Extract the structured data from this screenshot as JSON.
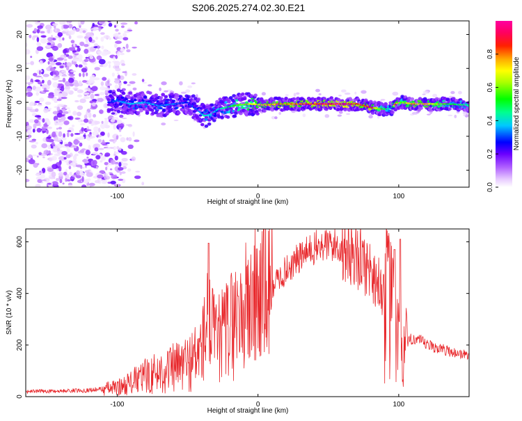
{
  "title": "S206.2025.274.02.30.E21",
  "chart_data": [
    {
      "type": "heatmap",
      "xlabel": "Height of straight line (km)",
      "ylabel": "Frequency (Hz)",
      "xlim": [
        -165,
        150
      ],
      "ylim": [
        -25,
        24
      ],
      "xticks": [
        -100,
        0,
        100
      ],
      "xtick_labels": [
        "-100",
        "0",
        "100"
      ],
      "yticks": [
        -20,
        -10,
        0,
        10,
        20
      ],
      "ytick_labels": [
        "-20",
        "-10",
        "0",
        "10",
        "20"
      ],
      "colorbar": {
        "label": "Normalized spectral amplitude",
        "range": [
          0.0,
          1.0
        ],
        "ticks": [
          0.0,
          0.2,
          0.4,
          0.6,
          0.8
        ],
        "tick_labels": [
          "0.0",
          "0.2",
          "0.4",
          "0.6",
          "0.8"
        ]
      },
      "ridge": {
        "description": "frequency ridge near 0 Hz",
        "x": [
          -105,
          -100,
          -90,
          -80,
          -70,
          -60,
          -50,
          -42,
          -38,
          -33,
          -28,
          -22,
          -15,
          -5,
          5,
          15,
          30,
          45,
          60,
          72,
          80,
          88,
          95,
          98,
          102,
          110,
          120,
          135,
          150
        ],
        "freq": [
          0.0,
          0.5,
          -0.5,
          0.0,
          -1.0,
          -0.5,
          0.0,
          -2.5,
          -4.0,
          -3.5,
          -2.0,
          -1.5,
          -0.8,
          -0.5,
          -0.8,
          -0.5,
          -0.5,
          -0.5,
          -0.5,
          -0.5,
          -1.5,
          -2.0,
          -1.8,
          -0.5,
          0.0,
          -0.5,
          -0.5,
          -0.5,
          -0.8
        ],
        "amplitude": [
          0.3,
          0.35,
          0.4,
          0.4,
          0.38,
          0.35,
          0.3,
          0.35,
          0.45,
          0.4,
          0.4,
          0.5,
          0.6,
          0.7,
          0.8,
          0.85,
          0.9,
          0.95,
          1.0,
          0.9,
          0.95,
          0.6,
          0.4,
          0.9,
          0.6,
          0.85,
          0.8,
          0.55,
          0.5
        ]
      }
    },
    {
      "type": "line",
      "xlabel": "Height of straight line (km)",
      "ylabel": "SNR (10 * v/v)",
      "xlim": [
        -165,
        150
      ],
      "ylim": [
        0,
        650
      ],
      "xticks": [
        -100,
        0,
        100
      ],
      "xtick_labels": [
        "-100",
        "0",
        "100"
      ],
      "yticks": [
        0,
        200,
        400,
        600
      ],
      "ytick_labels": [
        "0",
        "200",
        "400",
        "600"
      ],
      "color": "#e8272b",
      "series": [
        {
          "name": "SNR",
          "x": [
            -165,
            -140,
            -120,
            -100,
            -90,
            -80,
            -70,
            -60,
            -50,
            -45,
            -40,
            -37,
            -35,
            -33,
            -30,
            -25,
            -20,
            -15,
            -10,
            -5,
            0,
            10,
            20,
            30,
            40,
            50,
            60,
            70,
            80,
            90,
            95,
            98,
            100,
            102,
            105,
            110,
            120,
            130,
            140,
            150
          ],
          "y": [
            20,
            22,
            25,
            35,
            55,
            80,
            95,
            110,
            130,
            150,
            185,
            260,
            330,
            250,
            210,
            240,
            280,
            300,
            330,
            365,
            390,
            430,
            490,
            540,
            575,
            590,
            580,
            550,
            490,
            400,
            320,
            240,
            200,
            170,
            190,
            230,
            200,
            185,
            170,
            160
          ],
          "spikes": [
            {
              "x": -35,
              "y": 595
            },
            {
              "x": 101,
              "y": 610
            },
            {
              "x": 97,
              "y": 570
            },
            {
              "x": -14,
              "y": 390
            }
          ]
        }
      ]
    }
  ]
}
